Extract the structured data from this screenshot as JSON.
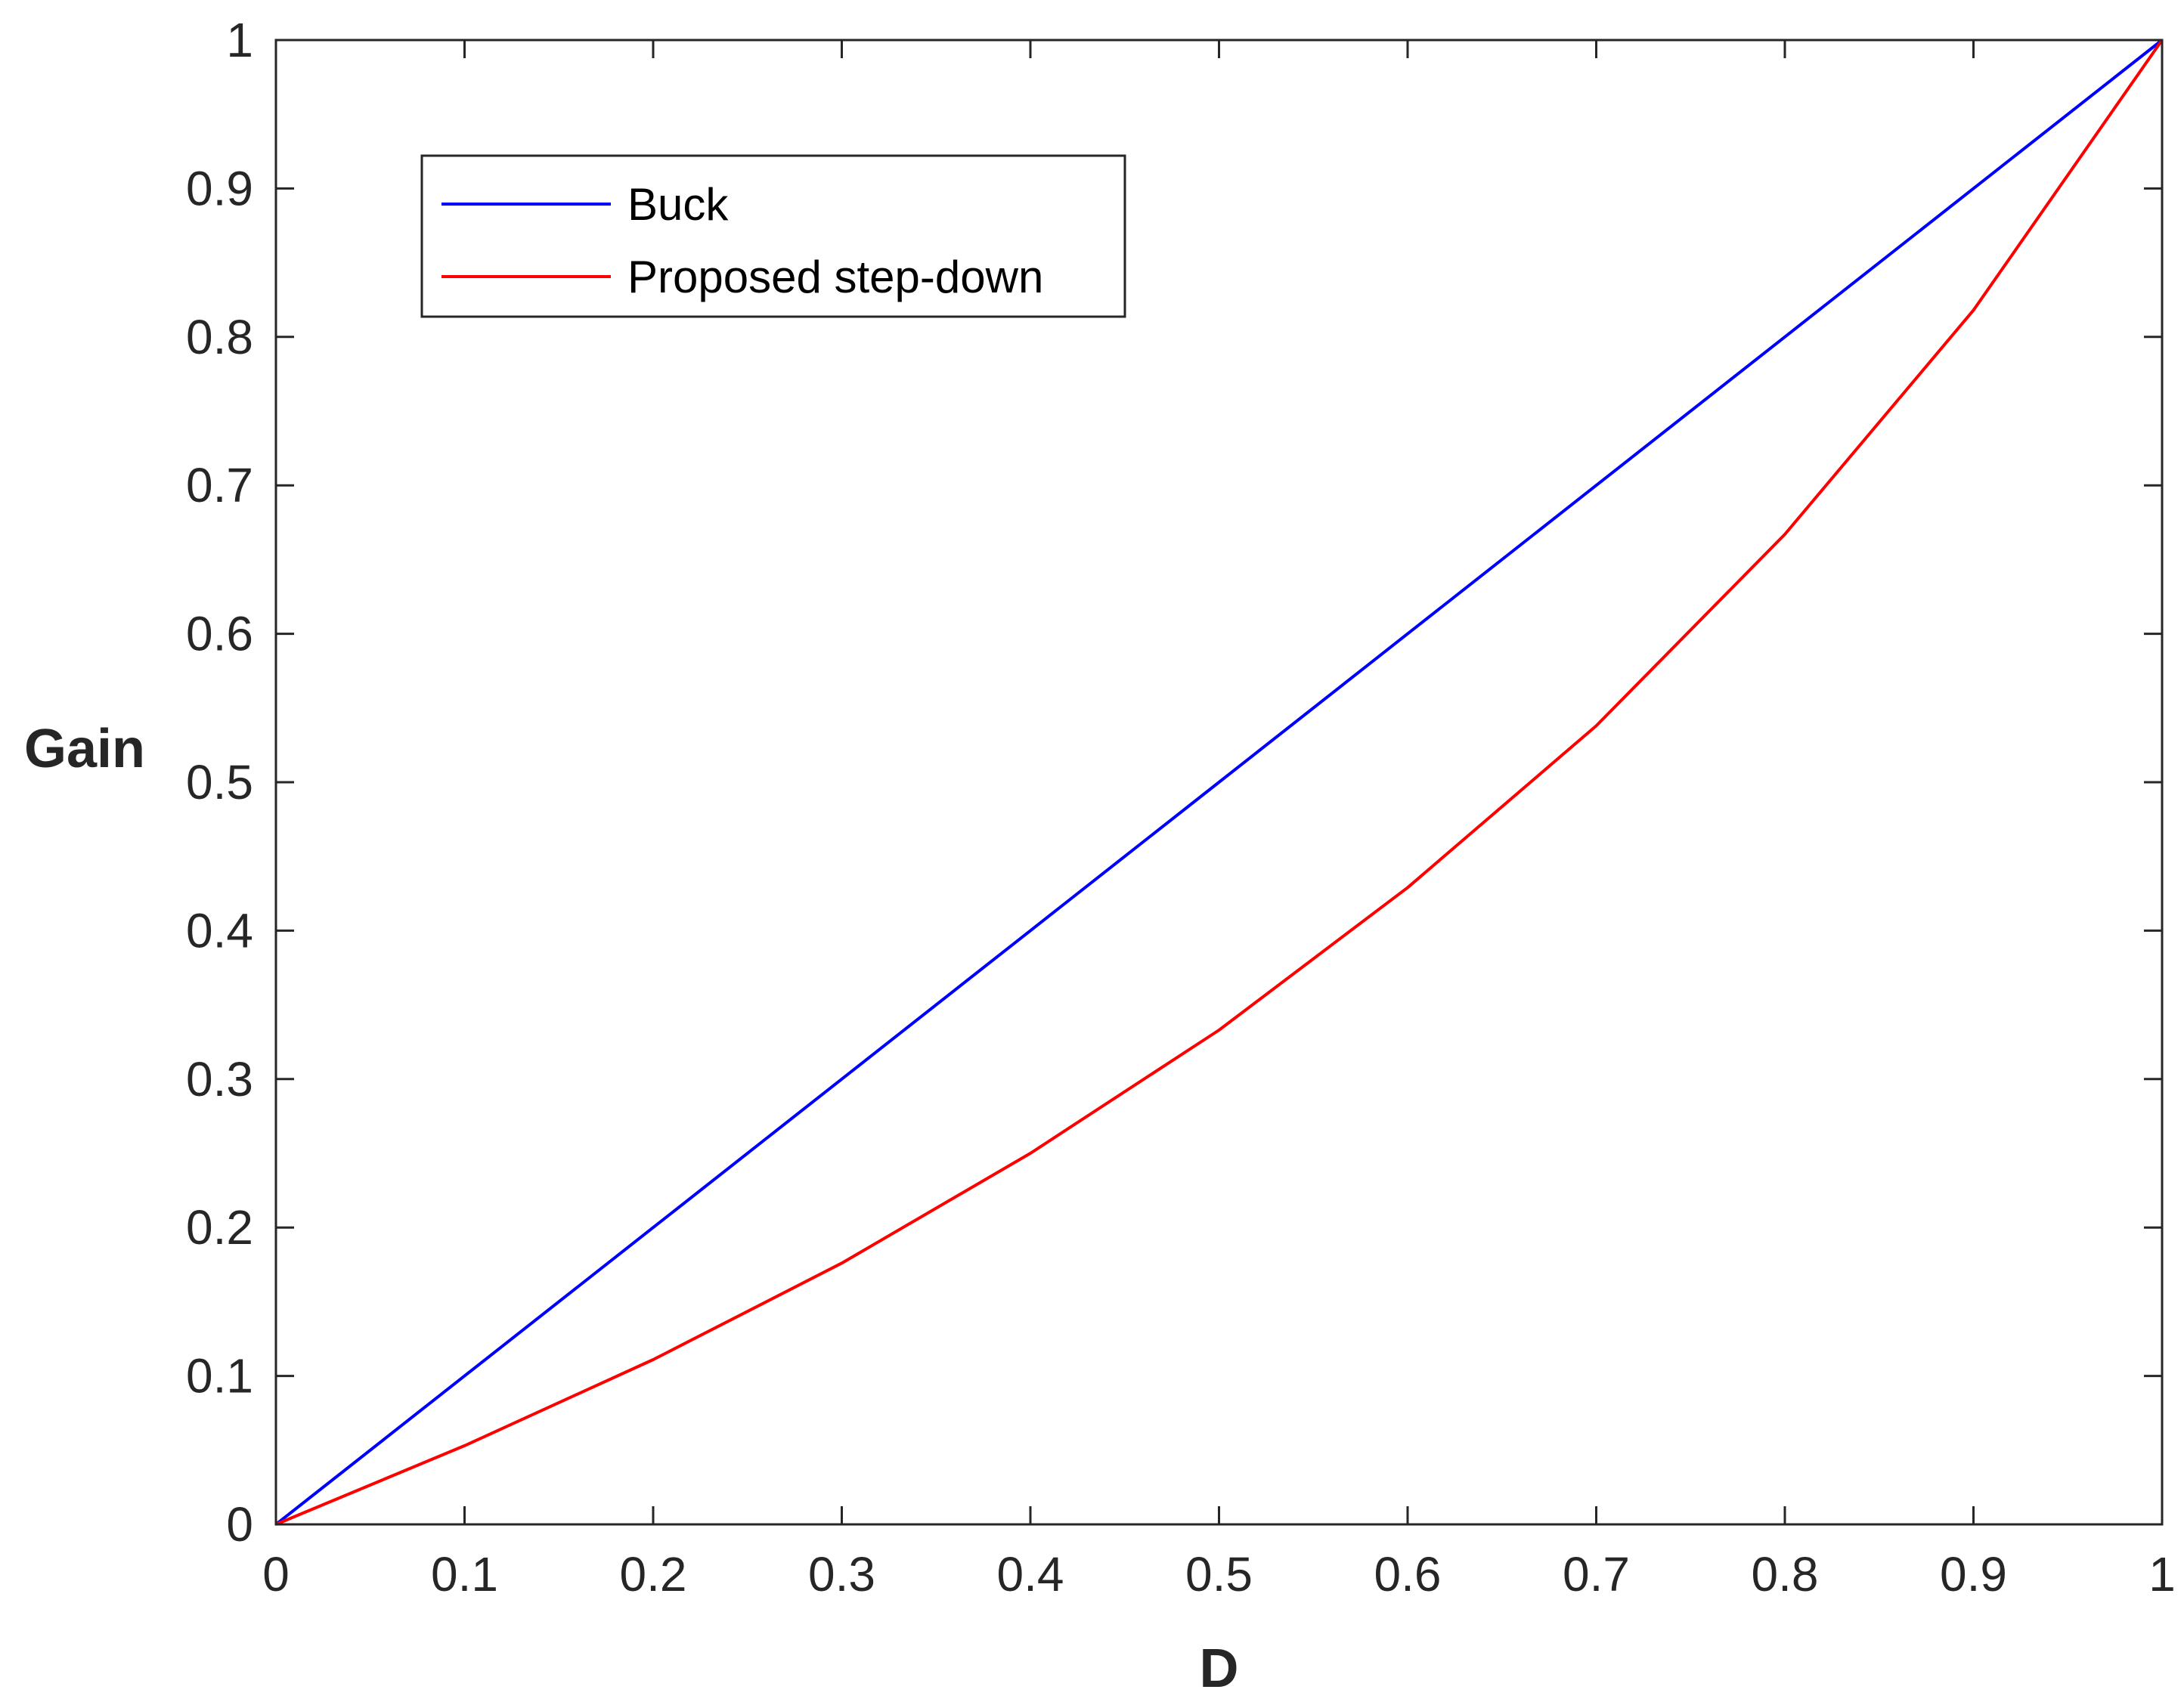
{
  "chart_data": {
    "type": "line",
    "title": "",
    "xlabel": "D",
    "ylabel": "Gain",
    "xlim": [
      0,
      1
    ],
    "ylim": [
      0,
      1
    ],
    "xticks": [
      "0",
      "0.1",
      "0.2",
      "0.3",
      "0.4",
      "0.5",
      "0.6",
      "0.7",
      "0.8",
      "0.9",
      "1"
    ],
    "yticks": [
      "0",
      "0.1",
      "0.2",
      "0.3",
      "0.4",
      "0.5",
      "0.6",
      "0.7",
      "0.8",
      "0.9",
      "1"
    ],
    "grid": false,
    "legend_position": "top-left",
    "x": [
      0,
      0.1,
      0.2,
      0.3,
      0.4,
      0.5,
      0.6,
      0.7,
      0.8,
      0.9,
      1
    ],
    "series": [
      {
        "name": "Buck",
        "color": "#0000ff",
        "values": [
          0,
          0.1,
          0.2,
          0.3,
          0.4,
          0.5,
          0.6,
          0.7,
          0.8,
          0.9,
          1
        ]
      },
      {
        "name": "Proposed step-down",
        "color": "#ff0000",
        "values": [
          0,
          0.053,
          0.111,
          0.176,
          0.25,
          0.333,
          0.429,
          0.538,
          0.667,
          0.818,
          1
        ]
      }
    ]
  }
}
